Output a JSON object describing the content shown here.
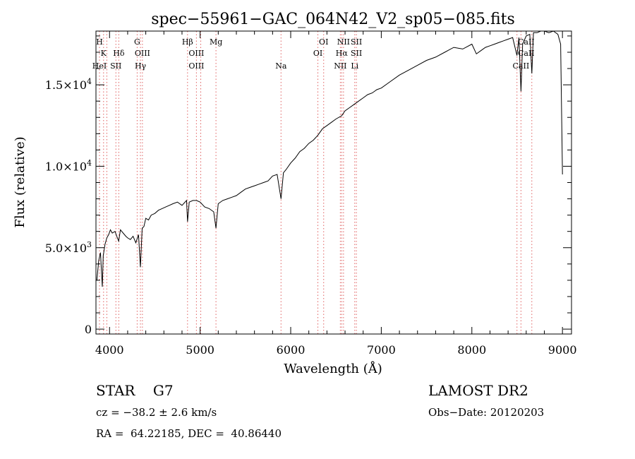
{
  "chart_data": {
    "type": "line",
    "title": "spec−55961−GAC_064N42_V2_sp05−085.fits",
    "xlabel": "Wavelength (Å)",
    "ylabel": "Flux (relative)",
    "xlim": [
      3850,
      9100
    ],
    "ylim": [
      -300,
      18300
    ],
    "x_ticks": [
      {
        "value": 4000,
        "label": "4000"
      },
      {
        "value": 5000,
        "label": "5000"
      },
      {
        "value": 6000,
        "label": "6000"
      },
      {
        "value": 7000,
        "label": "7000"
      },
      {
        "value": 8000,
        "label": "8000"
      },
      {
        "value": 9000,
        "label": "9000"
      }
    ],
    "y_ticks": [
      {
        "value": 0,
        "label": "0"
      },
      {
        "value": 5000,
        "label": "5.0×10",
        "exp": "3"
      },
      {
        "value": 10000,
        "label": "1.0×10",
        "exp": "4"
      },
      {
        "value": 15000,
        "label": "1.5×10",
        "exp": "4"
      }
    ],
    "series": [
      {
        "color": "#000000",
        "x": [
          3860,
          3880,
          3900,
          3920,
          3930,
          3950,
          3970,
          3990,
          4010,
          4030,
          4060,
          4080,
          4101,
          4120,
          4150,
          4180,
          4200,
          4230,
          4260,
          4290,
          4320,
          4341,
          4360,
          4380,
          4400,
          4430,
          4460,
          4500,
          4540,
          4580,
          4620,
          4660,
          4700,
          4750,
          4800,
          4850,
          4861,
          4880,
          4920,
          4960,
          5000,
          5050,
          5100,
          5150,
          5175,
          5200,
          5250,
          5300,
          5350,
          5400,
          5450,
          5500,
          5550,
          5600,
          5650,
          5700,
          5750,
          5800,
          5850,
          5893,
          5920,
          5950,
          6000,
          6050,
          6100,
          6150,
          6200,
          6250,
          6300,
          6350,
          6400,
          6450,
          6500,
          6563,
          6600,
          6650,
          6700,
          6750,
          6800,
          6850,
          6900,
          6950,
          7000,
          7100,
          7200,
          7300,
          7400,
          7500,
          7600,
          7700,
          7800,
          7900,
          8000,
          8050,
          8100,
          8150,
          8200,
          8250,
          8300,
          8350,
          8400,
          8450,
          8498,
          8520,
          8542,
          8560,
          8600,
          8640,
          8662,
          8680,
          8720,
          8760,
          8800,
          8850,
          8900,
          8950,
          8980,
          9000
        ],
        "y": [
          3000,
          4200,
          4700,
          2600,
          4500,
          5200,
          5600,
          5800,
          6100,
          5900,
          6000,
          5700,
          5400,
          6100,
          5900,
          5700,
          5600,
          5500,
          5700,
          5300,
          5800,
          3800,
          6200,
          6300,
          6800,
          6700,
          7000,
          7100,
          7300,
          7400,
          7500,
          7600,
          7700,
          7800,
          7600,
          7900,
          6600,
          7800,
          7900,
          7900,
          7800,
          7500,
          7400,
          7200,
          6200,
          7700,
          7900,
          8000,
          8100,
          8200,
          8400,
          8600,
          8700,
          8800,
          8900,
          9000,
          9100,
          9400,
          9500,
          8000,
          9600,
          9800,
          10200,
          10500,
          10900,
          11100,
          11400,
          11600,
          11900,
          12300,
          12500,
          12700,
          12900,
          13100,
          13400,
          13600,
          13800,
          14000,
          14200,
          14400,
          14500,
          14700,
          14800,
          15200,
          15600,
          15900,
          16200,
          16500,
          16700,
          17000,
          17300,
          17200,
          17500,
          16900,
          17100,
          17300,
          17400,
          17500,
          17600,
          17700,
          17800,
          17900,
          16800,
          17900,
          14600,
          17500,
          18000,
          18100,
          15700,
          18200,
          18200,
          18300,
          18300,
          18200,
          18300,
          18100,
          17500,
          9500
        ]
      }
    ],
    "lines_upper": [
      {
        "x": 3889,
        "label": "H",
        "row": 0
      },
      {
        "x": 3934,
        "label": "K",
        "row": 1
      },
      {
        "x": 3889,
        "label": "HeI",
        "row": 2
      },
      {
        "x": 4102,
        "label": "Hδ",
        "row": 1
      },
      {
        "x": 4070,
        "label": "SII",
        "row": 2
      },
      {
        "x": 4305,
        "label": "G",
        "row": 0
      },
      {
        "x": 4363,
        "label": "OIII",
        "row": 1
      },
      {
        "x": 4341,
        "label": "Hγ",
        "row": 2
      },
      {
        "x": 4861,
        "label": "Hβ",
        "row": 0
      },
      {
        "x": 4959,
        "label": "OIII",
        "row": 1
      },
      {
        "x": 4959,
        "label": "OIII",
        "row": 2
      },
      {
        "x": 5175,
        "label": "Mg",
        "row": 0
      },
      {
        "x": 5893,
        "label": "Na",
        "row": 2
      },
      {
        "x": 6364,
        "label": "OI",
        "row": 0
      },
      {
        "x": 6300,
        "label": "OI",
        "row": 1
      },
      {
        "x": 6583,
        "label": "NII",
        "row": 0
      },
      {
        "x": 6725,
        "label": "SII",
        "row": 0
      },
      {
        "x": 6563,
        "label": "Hα",
        "row": 1
      },
      {
        "x": 6725,
        "label": "SII",
        "row": 1
      },
      {
        "x": 6548,
        "label": "NII",
        "row": 2
      },
      {
        "x": 6707,
        "label": "Li",
        "row": 2
      },
      {
        "x": 8600,
        "label": "CaII",
        "row": 0
      },
      {
        "x": 8600,
        "label": "CaII",
        "row": 1
      },
      {
        "x": 8542,
        "label": "CaII",
        "row": 2
      }
    ],
    "marker_lines": [
      3889,
      3934,
      3970,
      4070,
      4102,
      4305,
      4341,
      4363,
      4861,
      4959,
      5007,
      5175,
      5893,
      6300,
      6364,
      6548,
      6563,
      6583,
      6707,
      6725,
      8498,
      8542,
      8662
    ]
  },
  "info": {
    "class_line": "STAR    G7",
    "survey": "LAMOST DR2",
    "cz_line": "cz = −38.2 ± 2.6 km/s",
    "obs_date": "Obs−Date: 20120203",
    "radec_line": "RA =  64.22185, DEC =  40.86440"
  }
}
